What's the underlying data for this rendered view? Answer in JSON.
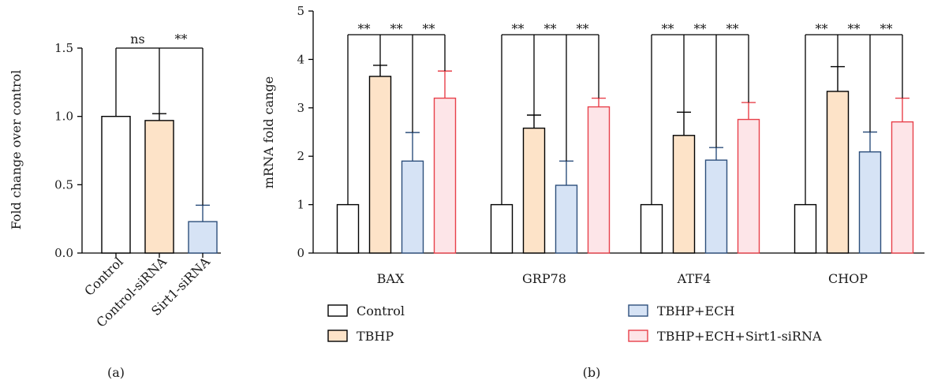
{
  "chart_data": [
    {
      "type": "bar",
      "panel_label": "(a)",
      "ylabel": "Fold change over control",
      "ylim": [
        0,
        1.5
      ],
      "yticks": [
        "0.0",
        "0.5",
        "1.0",
        "1.5"
      ],
      "categories": [
        "Control",
        "Control-siRNA",
        "Sirt1-siRNA"
      ],
      "values": [
        1.0,
        0.97,
        0.23
      ],
      "errors": [
        0.0,
        0.05,
        0.12
      ],
      "colors": [
        "#ffffff",
        "#fde3c8",
        "#d6e3f5"
      ],
      "edge_colors": [
        "#000000",
        "#000000",
        "#2d4f7c"
      ],
      "significance": [
        {
          "from": 0,
          "to": 1,
          "label": "ns"
        },
        {
          "from": 1,
          "to": 2,
          "label": "**"
        }
      ]
    },
    {
      "type": "bar",
      "panel_label": "(b)",
      "ylabel": "mRNA fold cange",
      "ylim": [
        0,
        5
      ],
      "yticks": [
        "0",
        "1",
        "2",
        "3",
        "4",
        "5"
      ],
      "categories": [
        "BAX",
        "GRP78",
        "ATF4",
        "CHOP"
      ],
      "series": [
        {
          "name": "Control",
          "values": [
            1.0,
            1.0,
            1.0,
            1.0
          ],
          "errors": [
            0,
            0,
            0,
            0
          ],
          "color": "#ffffff",
          "edge": "#000000"
        },
        {
          "name": "TBHP",
          "values": [
            3.65,
            2.58,
            2.43,
            3.34
          ],
          "errors": [
            0.23,
            0.27,
            0.48,
            0.51
          ],
          "color": "#fde3c8",
          "edge": "#000000"
        },
        {
          "name": "TBHP+ECH",
          "values": [
            1.9,
            1.4,
            1.92,
            2.09
          ],
          "errors": [
            0.59,
            0.5,
            0.26,
            0.41
          ],
          "color": "#d6e3f5",
          "edge": "#2d4f7c"
        },
        {
          "name": "TBHP+ECH+Sirt1-siRNA",
          "values": [
            3.2,
            3.02,
            2.76,
            2.71
          ],
          "errors": [
            0.56,
            0.18,
            0.35,
            0.49
          ],
          "color": "#fde5e8",
          "edge": "#e8404a"
        }
      ],
      "significance_label": "**"
    }
  ]
}
